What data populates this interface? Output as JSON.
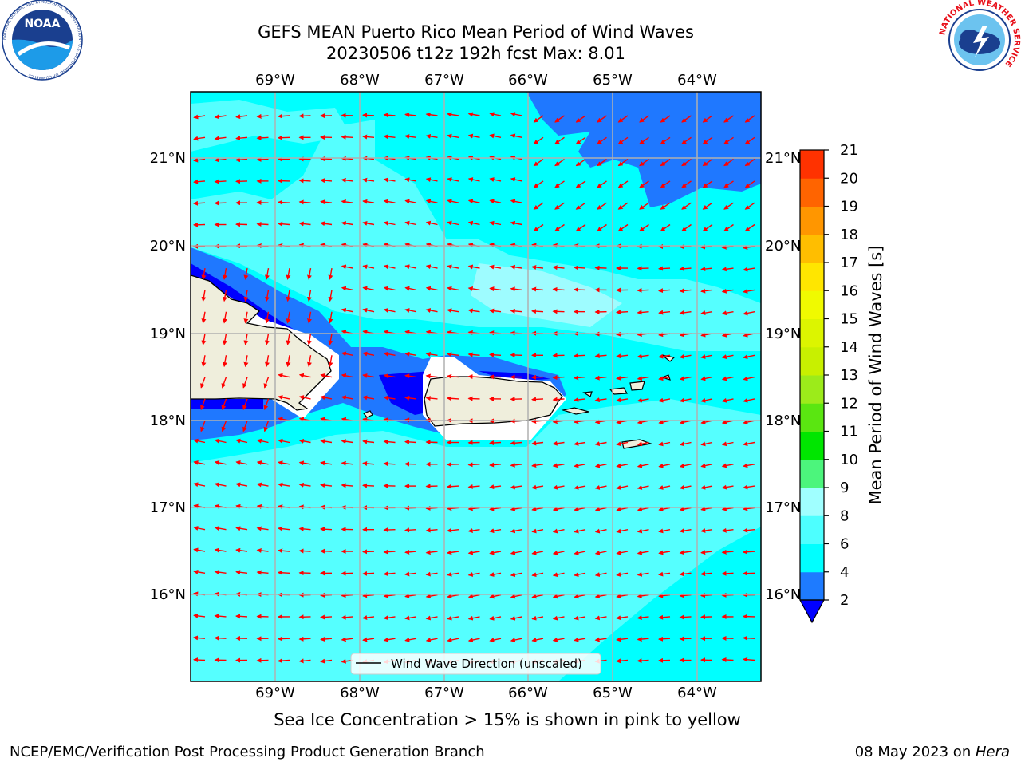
{
  "header": {
    "title_line1": "GEFS MEAN Puerto Rico Mean Period of Wind Waves",
    "title_line2": "20230506 t12z 192h fcst   Max: 8.01"
  },
  "logos": {
    "noaa": {
      "text": "NOAA",
      "ring_text": "NATIONAL OCEANIC AND ATMOSPHERIC ADMINISTRATION · U.S. DEPARTMENT OF COMMERCE"
    },
    "nws": {
      "ring_text": "NATIONAL WEATHER SERVICE"
    }
  },
  "map": {
    "lon_labels": [
      "69°W",
      "68°W",
      "67°W",
      "66°W",
      "65°W",
      "64°W"
    ],
    "lat_labels": [
      "21°N",
      "20°N",
      "19°N",
      "18°N",
      "17°N",
      "16°N"
    ],
    "lon_range": [
      -70.0,
      -63.25
    ],
    "lat_range": [
      15.0,
      21.75
    ],
    "colors": {
      "band_2_4": "#1f78ff",
      "band_4_6": "#00ffff",
      "band_6_8": "#55ffff",
      "band_8_9": "#9efcff",
      "below_2": "#0000ff",
      "land": "#efeedc",
      "arrow": "#ff0000"
    },
    "legend_label": "Wind Wave Direction (unscaled)"
  },
  "colorbar": {
    "label": "Mean Period of Wind Waves [s]",
    "ticks": [
      "2",
      "4",
      "6",
      "8",
      "9",
      "10",
      "11",
      "12",
      "13",
      "14",
      "15",
      "16",
      "17",
      "18",
      "19",
      "20",
      "21"
    ],
    "colors": [
      "#1e7bff",
      "#00ffff",
      "#4dffff",
      "#a0ffff",
      "#4cf57c",
      "#00e600",
      "#5ae611",
      "#9ceb1a",
      "#c8f000",
      "#dcf500",
      "#f0fa00",
      "#ffe600",
      "#ffbe00",
      "#ff9600",
      "#ff6400",
      "#ff3200",
      "#ff0000"
    ],
    "under_color": "#0000ff"
  },
  "caption": "Sea Ice Concentration > 15% is shown in pink to yellow",
  "footer": {
    "left": "NCEP/EMC/Verification Post Processing Product Generation Branch",
    "date": "08 May 2023 on ",
    "machine": "Hera"
  }
}
